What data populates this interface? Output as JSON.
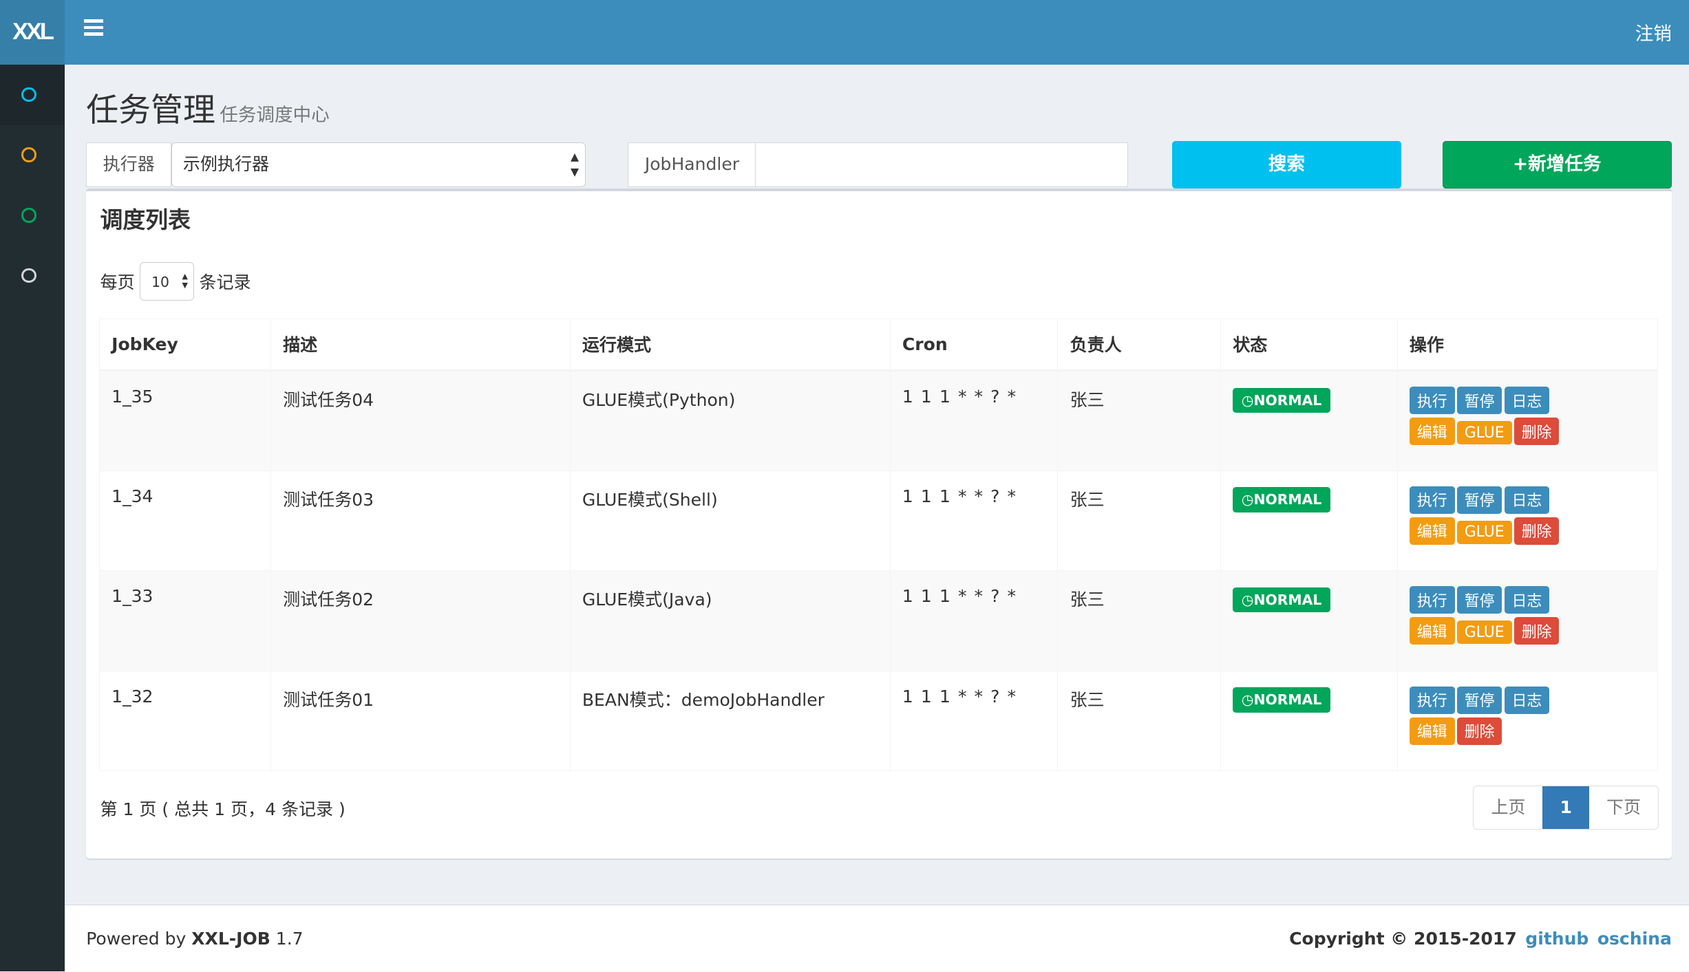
{
  "header": {
    "logo": "XXL",
    "logout": "注销"
  },
  "sidebar": {
    "items": [
      {
        "color": "#00c0ef"
      },
      {
        "color": "#f39c12"
      },
      {
        "color": "#00a65a"
      },
      {
        "color": "#d2d6de"
      }
    ]
  },
  "page": {
    "title": "任务管理",
    "subtitle": "任务调度中心"
  },
  "filters": {
    "executor_label": "执行器",
    "executor_value": "示例执行器",
    "jobhandler_label": "JobHandler",
    "jobhandler_value": "",
    "search": "搜索",
    "add": "+新增任务"
  },
  "box": {
    "title": "调度列表",
    "per_page_prefix": "每页",
    "per_page_value": "10",
    "per_page_suffix": "条记录"
  },
  "table": {
    "columns": [
      "JobKey",
      "描述",
      "运行模式",
      "Cron",
      "负责人",
      "状态",
      "操作"
    ],
    "rows": [
      {
        "jobkey": "1_35",
        "desc": "测试任务04",
        "mode": "GLUE模式(Python)",
        "cron": "1 1 1 * * ? *",
        "owner": "张三",
        "status": "NORMAL",
        "actions": [
          "执行",
          "暂停",
          "日志",
          "编辑",
          "GLUE",
          "删除"
        ]
      },
      {
        "jobkey": "1_34",
        "desc": "测试任务03",
        "mode": "GLUE模式(Shell)",
        "cron": "1 1 1 * * ? *",
        "owner": "张三",
        "status": "NORMAL",
        "actions": [
          "执行",
          "暂停",
          "日志",
          "编辑",
          "GLUE",
          "删除"
        ]
      },
      {
        "jobkey": "1_33",
        "desc": "测试任务02",
        "mode": "GLUE模式(Java)",
        "cron": "1 1 1 * * ? *",
        "owner": "张三",
        "status": "NORMAL",
        "actions": [
          "执行",
          "暂停",
          "日志",
          "编辑",
          "GLUE",
          "删除"
        ]
      },
      {
        "jobkey": "1_32",
        "desc": "测试任务01",
        "mode": "BEAN模式：demoJobHandler",
        "cron": "1 1 1 * * ? *",
        "owner": "张三",
        "status": "NORMAL",
        "actions": [
          "执行",
          "暂停",
          "日志",
          "编辑",
          "删除"
        ]
      }
    ]
  },
  "pagination": {
    "info": "第 1 页 ( 总共 1 页，4 条记录 )",
    "prev": "上页",
    "current": "1",
    "next": "下页"
  },
  "footer": {
    "powered_prefix": "Powered by ",
    "product": "XXL-JOB",
    "version": " 1.7",
    "copyright": "Copyright © 2015-2017",
    "links": [
      "github",
      "oschina"
    ]
  },
  "colors": {
    "primary": "#3c8dbc",
    "info": "#00c0ef",
    "success": "#00a65a",
    "warning": "#f39c12",
    "danger": "#dd4b39"
  }
}
